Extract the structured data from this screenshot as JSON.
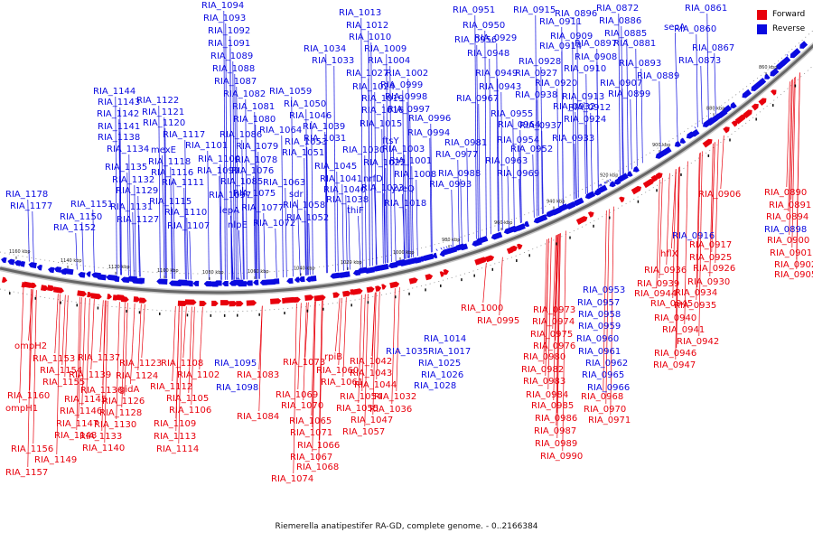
{
  "caption": "Riemerella anatipestifer RA-GD, complete genome. - 0..2166384",
  "legend": [
    {
      "label": "Forward",
      "color": "#e8000c"
    },
    {
      "label": "Reverse",
      "color": "#0a0ae0"
    }
  ],
  "scale_ticks": [
    "1160 kbp",
    "1140 kbp",
    "1120 kbp",
    "1100 kbp",
    "1080 kbp",
    "1060 kbp",
    "1040 kbp",
    "1020 kbp",
    "1000 kbp",
    "980 kbp",
    "960 kbp",
    "940 kbp",
    "920 kbp",
    "900 kbp",
    "880 kbp",
    "860 kbp",
    "840 kbp",
    "820 kbp"
  ],
  "forward_labels": [
    "ompH2",
    "RIA_1153",
    "RIA_1154",
    "RIA_1155",
    "RIA_1160",
    "ompH1",
    "RIA_1147",
    "RIA_1148",
    "RIA_1156",
    "RIA_1149",
    "RIA_1157",
    "RIA_1137",
    "RIA_1139",
    "RIA_1136",
    "RIA_1145",
    "RIA_1146",
    "RIA_1130",
    "RIA_1133",
    "RIA_1140",
    "RIA_1123",
    "RIA_1124",
    "gidA",
    "RIA_1126",
    "RIA_1128",
    "RIA_1108",
    "RIA_1102",
    "RIA_1112",
    "RIA_1105",
    "RIA_1106",
    "RIA_1109",
    "RIA_1113",
    "RIA_1114",
    "RIA_1083",
    "RIA_1084",
    "RIA_1073",
    "RIA_1069",
    "RIA_1070",
    "RIA_1065",
    "RIA_1071",
    "RIA_1066",
    "RIA_1067",
    "RIA_1068",
    "RIA_1074",
    "rpiB",
    "RIA_1060",
    "RIA_1061",
    "RIA_1054",
    "RIA_1055",
    "RIA_1057",
    "RIA_1047",
    "RIA_1042",
    "RIA_1043",
    "RIA_1044",
    "RIA_1032",
    "RIA_1036",
    "RIA_1000",
    "RIA_0995",
    "RIA_0973",
    "RIA_0974",
    "RIA_0975",
    "RIA_0976",
    "RIA_0980",
    "RIA_0982",
    "RIA_0983",
    "RIA_0984",
    "RIA_0985",
    "RIA_0986",
    "RIA_0987",
    "RIA_0989",
    "RIA_0990",
    "RIA_0968",
    "RIA_0970",
    "RIA_0971",
    "RIA_0906",
    "RIA_0890",
    "RIA_0891",
    "RIA_0894",
    "hflX",
    "RIA_0917",
    "RIA_0925",
    "RIA_0926",
    "RIA_0930",
    "RIA_0936",
    "RIA_0939",
    "RIA_0944",
    "RIA_0934",
    "RIA_0945",
    "RIA_0935",
    "RIA_0940",
    "RIA_0941",
    "RIA_0942",
    "RIA_0946",
    "RIA_0947",
    "RIA_0900",
    "RIA_0901",
    "RIA_0902",
    "RIA_0905"
  ],
  "reverse_labels": [
    "RIA_1178",
    "RIA_1177",
    "RIA_1151",
    "RIA_1150",
    "RIA_1152",
    "RIA_1144",
    "RIA_1143",
    "RIA_1142",
    "RIA_1141",
    "RIA_1138",
    "RIA_1134",
    "RIA_1135",
    "RIA_1132",
    "RIA_1129",
    "RIA_1131",
    "RIA_1127",
    "RIA_1122",
    "RIA_1121",
    "RIA_1120",
    "RIA_1117",
    "mexE",
    "RIA_1118",
    "RIA_1116",
    "RIA_1111",
    "RIA_1115",
    "RIA_1110",
    "RIA_1107",
    "RIA_1094",
    "RIA_1093",
    "RIA_1092",
    "RIA_1091",
    "RIA_1089",
    "RIA_1088",
    "RIA_1087",
    "RIA_1082",
    "RIA_1081",
    "RIA_1080",
    "RIA_1086",
    "RIA_1079",
    "RIA_1078",
    "RIA_1076",
    "RIA_1075",
    "RIA_1077",
    "RIA_1072",
    "RIA_1101",
    "RIA_1100",
    "RIA_1099",
    "RIA_1085",
    "RIA_1097",
    "lepA",
    "nlpE",
    "RIA_1059",
    "RIA_1050",
    "RIA_1046",
    "RIA_1064",
    "RIA_1053",
    "RIA_1051",
    "RIA_1063",
    "sdr",
    "RIA_1058",
    "RIA_1052",
    "RIA_1039",
    "RIA_1031",
    "RIA_1045",
    "RIA_1041",
    "RIA_1040",
    "RIA_1038",
    "thiF",
    "RIA_1030",
    "nrfD",
    "RIA_1034",
    "RIA_1033",
    "RIA_1013",
    "RIA_1012",
    "RIA_1010",
    "RIA_1009",
    "RIA_1027",
    "RIA_1004",
    "RIA_1002",
    "RIA_1024",
    "RIA_0999",
    "RIA_1019",
    "RIA_0998",
    "RIA_1016",
    "RIA_0997",
    "RIA_1015",
    "RIA_0996",
    "ftsY",
    "RIA_0994",
    "RIA_1003",
    "RIA_1001",
    "RIA_1022",
    "RIA_1008",
    "RIA_1023",
    "yveQ",
    "RIA_1018",
    "RIA_0981",
    "RIA_0977",
    "RIA_0988",
    "RIA_0993",
    "RIA_0951",
    "RIA_0950",
    "RIA_0956",
    "RIA_0948",
    "RIA_0949",
    "RIA_0943",
    "RIA_0967",
    "RIA_0938",
    "RIA_0955",
    "RIA_0964",
    "RIA_0937",
    "RIA_0954",
    "RIA_0952",
    "RIA_0963",
    "RIA_0969",
    "RIA_0915",
    "RIA_0911",
    "RIA_0929",
    "RIA_0914",
    "RIA_0928",
    "RIA_0927",
    "RIA_0920",
    "RIA_0909",
    "RIA_0908",
    "RIA_0910",
    "RIA_0913",
    "RIA_0932",
    "RIA_0924",
    "RIA_0933",
    "RIA_0912",
    "RIA_0896",
    "RIA_0872",
    "RIA_0886",
    "RIA_0885",
    "RIA_0897",
    "RIA_0881",
    "RIA_0893",
    "RIA_0907",
    "RIA_0899",
    "RIA_0889",
    "RIA_0861",
    "secA",
    "RIA_0860",
    "RIA_0867",
    "RIA_0873",
    "RIA_1014",
    "RIA_1017",
    "RIA_1025",
    "RIA_1026",
    "RIA_1028",
    "RIA_1035",
    "RIA_1095",
    "RIA_1098",
    "RIA_0953",
    "RIA_0957",
    "RIA_0958",
    "RIA_0959",
    "RIA_0960",
    "RIA_0961",
    "RIA_0962",
    "RIA_0965",
    "RIA_0966",
    "RIA_0916",
    "RIA_0898"
  ]
}
